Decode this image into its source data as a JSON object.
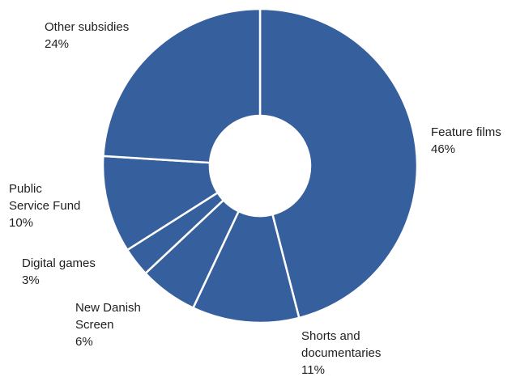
{
  "chart_data": {
    "type": "pie",
    "variant": "donut",
    "colors": {
      "slice": "#365f9e",
      "separator": "#ffffff",
      "label": "#1f1f1f"
    },
    "slices": [
      {
        "label_lines": [
          "Feature films"
        ],
        "pct_label": "46%",
        "value": 46
      },
      {
        "label_lines": [
          "Shorts and",
          "documentaries"
        ],
        "pct_label": "11%",
        "value": 11
      },
      {
        "label_lines": [
          "New Danish",
          "Screen"
        ],
        "pct_label": "6%",
        "value": 6
      },
      {
        "label_lines": [
          "Digital games"
        ],
        "pct_label": "3%",
        "value": 3
      },
      {
        "label_lines": [
          "Public",
          "Service Fund"
        ],
        "pct_label": "10%",
        "value": 10
      },
      {
        "label_lines": [
          "Other subsidies"
        ],
        "pct_label": "24%",
        "value": 24
      }
    ]
  }
}
